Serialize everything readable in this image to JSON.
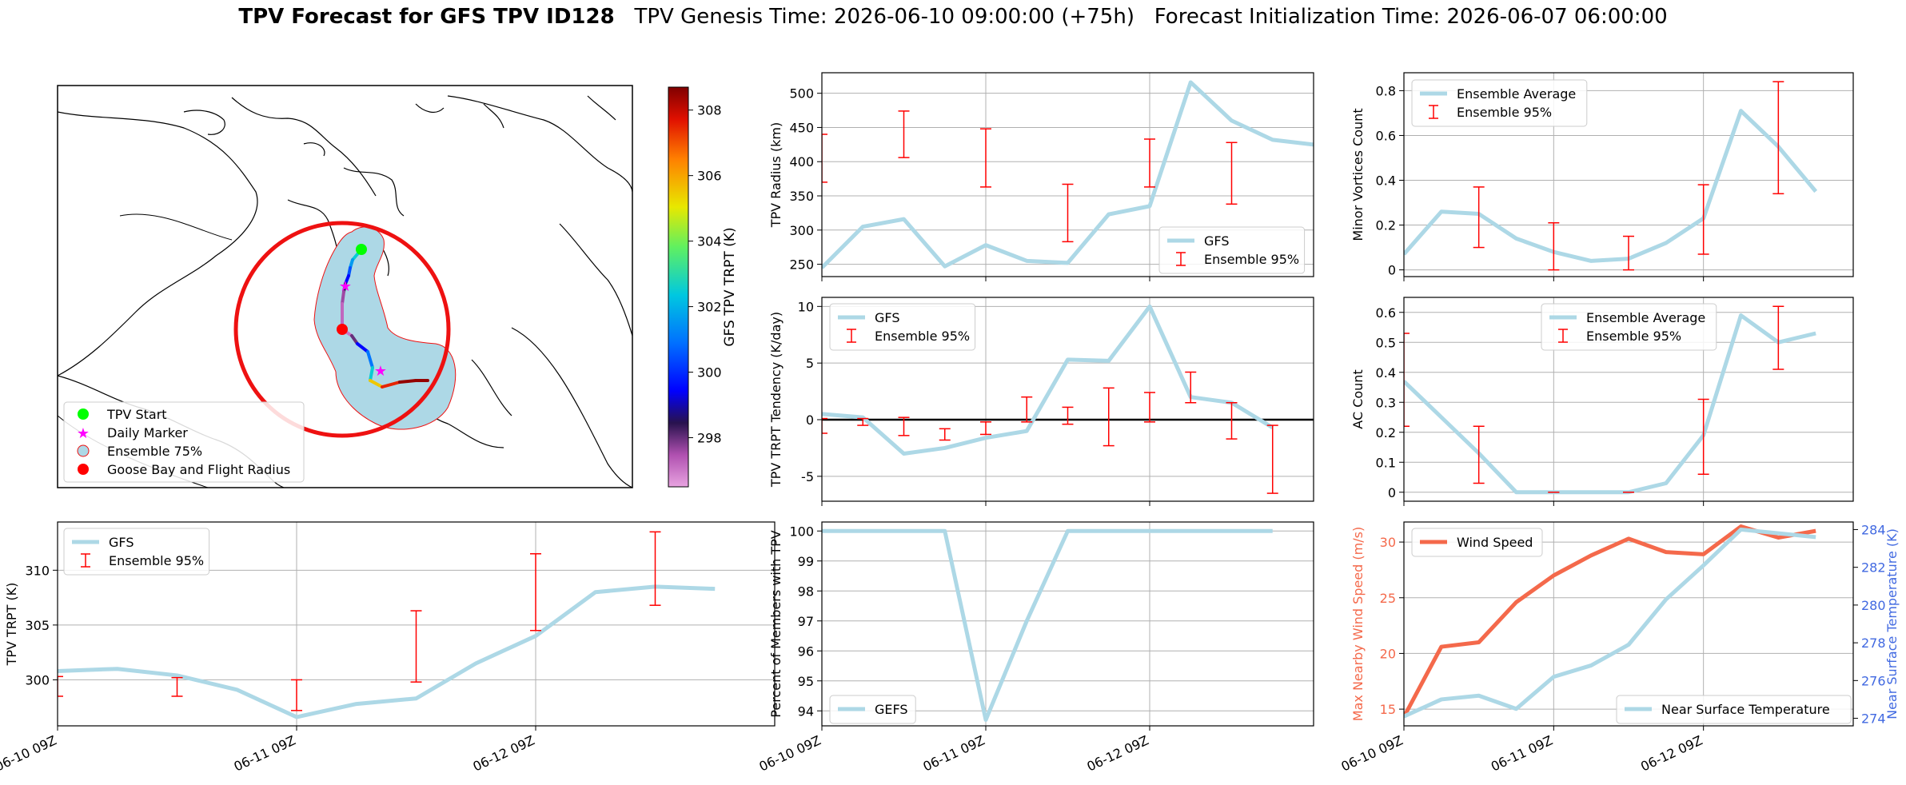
{
  "title": {
    "bold": "TPV Forecast for GFS TPV ID128",
    "genesis": "TPV Genesis Time: 2026-06-10 09:00:00 (+75h)",
    "init": "Forecast Initialization Time: 2026-06-07 06:00:00"
  },
  "colors": {
    "gfs_line": "#add8e6",
    "errorbar": "#ff0000",
    "wind": "#f4694b",
    "temp_axis": "#4169e1",
    "circle": "#ee1111",
    "ensemble_fill": "#add8e6"
  },
  "time_ticks": [
    "06-10 09Z",
    "06-11 09Z",
    "06-12 09Z"
  ],
  "chart_data": [
    {
      "id": "map",
      "type": "map",
      "colorbar": {
        "label": "GFS TPV TRPT (K)",
        "range": [
          296.5,
          308.7
        ],
        "ticks": [
          298,
          300,
          302,
          304,
          306,
          308
        ]
      },
      "legend": {
        "placement": "lower-left",
        "entries": [
          "TPV Start",
          "Daily Marker",
          "Ensemble 75%",
          "Goose Bay and Flight Radius"
        ]
      },
      "track_trpt": [
        303.5,
        302.5,
        301.6,
        300.5,
        299.5,
        298.4,
        297.6,
        297.2,
        297.0,
        298.0,
        299.5,
        301.0,
        302.5,
        305.5,
        307.5,
        308.5,
        308.5,
        308.5
      ]
    },
    {
      "id": "radius",
      "type": "line",
      "ylabel": "TPV Radius (km)",
      "ylim": [
        232,
        530
      ],
      "yticks": [
        250,
        300,
        350,
        400,
        450,
        500
      ],
      "x": [
        0,
        0.25,
        0.5,
        0.75,
        1,
        1.25,
        1.5,
        1.75,
        2,
        2.25,
        2.5,
        2.75,
        3
      ],
      "series": [
        {
          "name": "GFS",
          "values": [
            245,
            305,
            316,
            247,
            278,
            255,
            252,
            323,
            335,
            516,
            460,
            432,
            425
          ]
        }
      ],
      "errorbars": [
        {
          "x": 0,
          "low": 370,
          "high": 440
        },
        {
          "x": 0.5,
          "low": 406,
          "high": 474
        },
        {
          "x": 1,
          "low": 363,
          "high": 448
        },
        {
          "x": 1.5,
          "low": 283,
          "high": 367
        },
        {
          "x": 2,
          "low": 363,
          "high": 433
        },
        {
          "x": 2.5,
          "low": 338,
          "high": 428
        }
      ],
      "legend": {
        "placement": "lower-right",
        "entries": [
          "GFS",
          "Ensemble 95%"
        ]
      }
    },
    {
      "id": "minor",
      "type": "line",
      "ylabel": "Minor Vortices Count",
      "ylim": [
        -0.03,
        0.88
      ],
      "yticks": [
        0.0,
        0.2,
        0.4,
        0.6,
        0.8
      ],
      "x": [
        0,
        0.25,
        0.5,
        0.75,
        1,
        1.25,
        1.5,
        1.75,
        2,
        2.25,
        2.5,
        2.75
      ],
      "series": [
        {
          "name": "Ensemble Average",
          "values": [
            0.07,
            0.26,
            0.25,
            0.14,
            0.08,
            0.04,
            0.05,
            0.12,
            0.23,
            0.71,
            0.55,
            0.35
          ]
        }
      ],
      "errorbars": [
        {
          "x": 0.5,
          "low": 0.1,
          "high": 0.37
        },
        {
          "x": 1,
          "low": 0.0,
          "high": 0.21
        },
        {
          "x": 1.5,
          "low": 0.0,
          "high": 0.15
        },
        {
          "x": 2,
          "low": 0.07,
          "high": 0.38
        },
        {
          "x": 2.5,
          "low": 0.34,
          "high": 0.84
        }
      ],
      "legend": {
        "placement": "upper-left",
        "entries": [
          "Ensemble Average",
          "Ensemble 95%"
        ]
      }
    },
    {
      "id": "tendency",
      "type": "line",
      "ylabel": "TPV TRPT Tendency (K/day)",
      "ylim": [
        -7.2,
        10.8
      ],
      "yticks": [
        -5,
        0,
        5,
        10
      ],
      "zero_line": true,
      "x": [
        0,
        0.25,
        0.5,
        0.75,
        1,
        1.25,
        1.5,
        1.75,
        2,
        2.25,
        2.5,
        2.75
      ],
      "series": [
        {
          "name": "GFS",
          "values": [
            0.5,
            0.2,
            -3.0,
            -2.5,
            -1.6,
            -1.0,
            5.3,
            5.2,
            10.0,
            2.0,
            1.5,
            -0.7
          ]
        }
      ],
      "errorbars": [
        {
          "x": 0,
          "low": -1.2,
          "high": 0.1
        },
        {
          "x": 0.25,
          "low": -0.5,
          "high": 0.1
        },
        {
          "x": 0.5,
          "low": -1.4,
          "high": 0.2
        },
        {
          "x": 0.75,
          "low": -1.8,
          "high": -0.8
        },
        {
          "x": 1,
          "low": -1.3,
          "high": -0.2
        },
        {
          "x": 1.25,
          "low": -0.2,
          "high": 2.0
        },
        {
          "x": 1.5,
          "low": -0.4,
          "high": 1.1
        },
        {
          "x": 1.75,
          "low": -2.3,
          "high": 2.8
        },
        {
          "x": 2,
          "low": -0.2,
          "high": 2.4
        },
        {
          "x": 2.25,
          "low": 1.5,
          "high": 4.2
        },
        {
          "x": 2.5,
          "low": -1.7,
          "high": 1.5
        },
        {
          "x": 2.75,
          "low": -6.5,
          "high": -0.5
        }
      ],
      "legend": {
        "placement": "upper-left",
        "entries": [
          "GFS",
          "Ensemble 95%"
        ]
      }
    },
    {
      "id": "ac",
      "type": "line",
      "ylabel": "AC Count",
      "ylim": [
        -0.03,
        0.65
      ],
      "yticks": [
        0.0,
        0.1,
        0.2,
        0.3,
        0.4,
        0.5,
        0.6
      ],
      "x": [
        0,
        0.25,
        0.5,
        0.75,
        1,
        1.25,
        1.5,
        1.75,
        2,
        2.25,
        2.5,
        2.75
      ],
      "series": [
        {
          "name": "Ensemble Average",
          "values": [
            0.37,
            0.25,
            0.13,
            0.0,
            0.0,
            0.0,
            0.0,
            0.03,
            0.19,
            0.59,
            0.5,
            0.53
          ]
        }
      ],
      "errorbars": [
        {
          "x": 0,
          "low": 0.22,
          "high": 0.53
        },
        {
          "x": 0.5,
          "low": 0.03,
          "high": 0.22
        },
        {
          "x": 1,
          "low": 0.0,
          "high": 0.0
        },
        {
          "x": 1.5,
          "low": 0.0,
          "high": 0.0
        },
        {
          "x": 2,
          "low": 0.06,
          "high": 0.31
        },
        {
          "x": 2.5,
          "low": 0.41,
          "high": 0.62
        }
      ],
      "legend": {
        "placement": "upper-right",
        "entries": [
          "Ensemble Average",
          "Ensemble 95%"
        ]
      }
    },
    {
      "id": "trpt",
      "type": "line",
      "ylabel": "TPV TRPT (K)",
      "ylim": [
        295.8,
        314.4
      ],
      "yticks": [
        300,
        305,
        310
      ],
      "x": [
        0,
        0.25,
        0.5,
        0.75,
        1,
        1.25,
        1.5,
        1.75,
        2,
        2.25,
        2.5,
        2.75
      ],
      "series": [
        {
          "name": "GFS",
          "values": [
            300.8,
            301.0,
            300.4,
            299.1,
            296.6,
            297.8,
            298.3,
            301.5,
            304.0,
            308.0,
            308.5,
            308.3
          ]
        }
      ],
      "errorbars": [
        {
          "x": 0,
          "low": 298.5,
          "high": 300.3
        },
        {
          "x": 0.5,
          "low": 298.5,
          "high": 300.2
        },
        {
          "x": 1,
          "low": 297.2,
          "high": 300.0
        },
        {
          "x": 1.5,
          "low": 299.8,
          "high": 306.3
        },
        {
          "x": 2,
          "low": 304.5,
          "high": 311.5
        },
        {
          "x": 2.5,
          "low": 306.8,
          "high": 313.5
        }
      ],
      "legend": {
        "placement": "upper-left",
        "entries": [
          "GFS",
          "Ensemble 95%"
        ]
      }
    },
    {
      "id": "percent",
      "type": "line",
      "ylabel": "Percent of Members with TPV",
      "ylim": [
        93.5,
        100.3
      ],
      "yticks": [
        94,
        95,
        96,
        97,
        98,
        99,
        100
      ],
      "x": [
        0,
        0.25,
        0.5,
        0.75,
        1,
        1.25,
        1.5,
        1.75,
        2,
        2.25,
        2.5,
        2.75
      ],
      "series": [
        {
          "name": "GEFS",
          "values": [
            100,
            100,
            100,
            100,
            93.7,
            97.0,
            100,
            100,
            100,
            100,
            100,
            100
          ]
        }
      ],
      "legend": {
        "placement": "lower-left",
        "entries": [
          "GEFS"
        ]
      }
    },
    {
      "id": "wind",
      "type": "line",
      "ylabel": "Max Nearby Wind Speed (m/s)",
      "ylabel_right": "Near Surface Temperature (K)",
      "ylim": [
        13.5,
        31.8
      ],
      "yticks": [
        15,
        20,
        25,
        30
      ],
      "ylim_right": [
        273.6,
        284.4
      ],
      "yticks_right": [
        274,
        276,
        278,
        280,
        282,
        284
      ],
      "x": [
        0,
        0.25,
        0.5,
        0.75,
        1,
        1.25,
        1.5,
        1.75,
        2,
        2.25,
        2.5,
        2.75
      ],
      "series": [
        {
          "name": "Wind Speed",
          "axis": "left",
          "values": [
            14.3,
            20.6,
            21.0,
            24.6,
            27.0,
            28.8,
            30.3,
            29.1,
            28.9,
            31.4,
            30.4,
            31.0
          ]
        },
        {
          "name": "Near Surface Temperature",
          "axis": "right",
          "values": [
            274.1,
            275.0,
            275.2,
            274.5,
            276.2,
            276.8,
            277.9,
            280.3,
            282.1,
            284.0,
            283.8,
            283.6
          ]
        }
      ],
      "legend": {
        "placement": "upper-left / lower-right",
        "entries": [
          "Wind Speed",
          "Near Surface Temperature"
        ]
      }
    }
  ]
}
